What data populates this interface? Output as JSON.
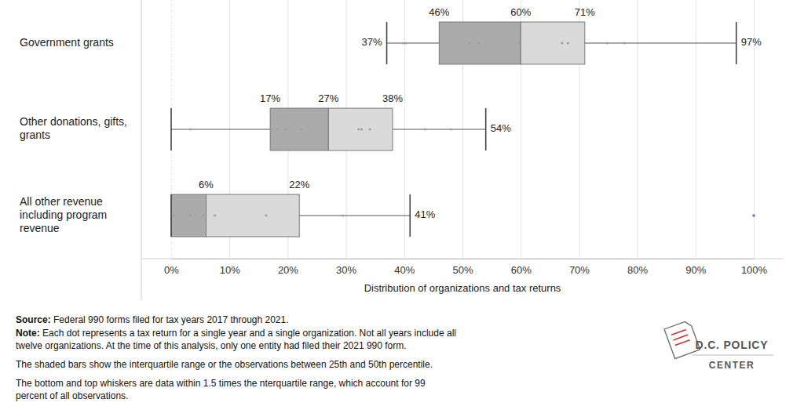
{
  "chart_data": {
    "type": "box",
    "orientation": "horizontal",
    "categories": [
      [
        "Government grants"
      ],
      [
        "Other donations, gifts,",
        "grants"
      ],
      [
        "All other revenue",
        "including program",
        "revenue"
      ]
    ],
    "boxes": [
      {
        "whisker_low": 37,
        "q1": 46,
        "median": 60,
        "q3": 71,
        "whisker_high": 97,
        "value_labels": [
          "37%",
          "46%",
          "60%",
          "71%",
          "97%"
        ],
        "points": [
          39.8,
          40.3,
          51.2,
          52.8,
          59.8,
          67.1,
          68.1,
          74.8,
          77.8
        ]
      },
      {
        "whisker_low": 0,
        "q1": 17,
        "median": 27,
        "q3": 38,
        "whisker_high": 54,
        "value_labels": [
          null,
          "17%",
          "27%",
          "38%",
          "54%"
        ],
        "points": [
          3.3,
          17.2,
          18.2,
          19.6,
          22.3,
          32.2,
          32.7,
          34.1,
          43.6,
          48.1
        ]
      },
      {
        "whisker_low": 0,
        "q1": 0,
        "median": 6,
        "q3": 22,
        "whisker_high": 41,
        "value_labels": [
          null,
          null,
          "6%",
          "22%",
          "41%"
        ],
        "points": [
          0.4,
          3.3,
          5.5,
          7.5,
          16.3,
          29.5
        ],
        "outliers": [
          100
        ]
      }
    ],
    "colors": [
      "#ababab",
      "#dadada"
    ],
    "x_label": "Distribution of organizations and tax returns",
    "xlim": [
      0,
      100
    ],
    "xticks": [
      {
        "value": 0,
        "label": "0%"
      },
      {
        "value": 10,
        "label": "10%"
      },
      {
        "value": 20,
        "label": "20%"
      },
      {
        "value": 30,
        "label": "30%"
      },
      {
        "value": 40,
        "label": "40%"
      },
      {
        "value": 50,
        "label": "50%"
      },
      {
        "value": 60,
        "label": "60%"
      },
      {
        "value": 70,
        "label": "70%"
      },
      {
        "value": 80,
        "label": "80%"
      },
      {
        "value": 90,
        "label": "90%"
      },
      {
        "value": 100,
        "label": "100%"
      }
    ],
    "grid": true,
    "notes": [
      {
        "lead": "Source:",
        "lines": [
          "Federal 990 forms filed for tax years 2017 through 2021."
        ]
      },
      {
        "lead": "Note:",
        "lines": [
          "Each dot represents a tax return for a single year and a single organization. Not all years include all",
          "twelve organizations. At the time of this analysis, only one entity had filed their 2021 990 form."
        ]
      },
      {
        "lines": [
          "The shaded bars show the interquartile range or the observations between 25th and 50th percentile."
        ]
      },
      {
        "lines": [
          "The bottom and top whiskers are data within 1.5 times the nterquartile range, which account for 99",
          "percent of all observations."
        ]
      }
    ],
    "logo": [
      "D.C. POLICY",
      "CENTER"
    ]
  }
}
